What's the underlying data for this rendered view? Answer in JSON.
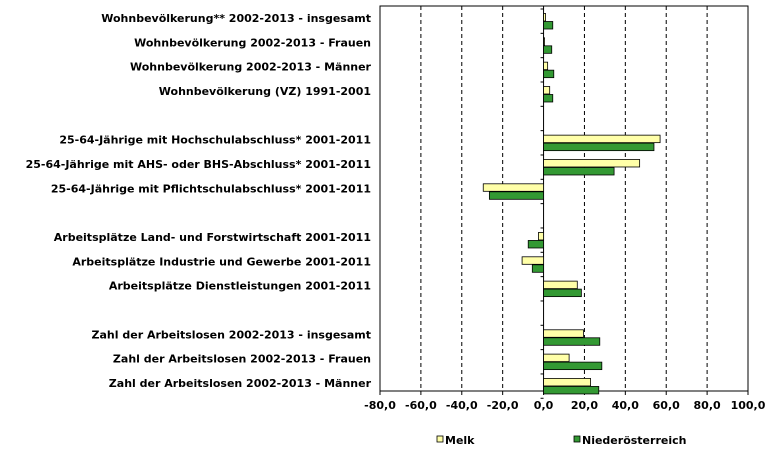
{
  "chart_data": {
    "type": "bar",
    "orientation": "horizontal",
    "categories": [
      "Wohnbevölkerung** 2002-2013 - insgesamt",
      "Wohnbevölkerung 2002-2013 - Frauen",
      "Wohnbevölkerung 2002-2013 - Männer",
      "Wohnbevölkerung (VZ) 1991-2001",
      "",
      "25-64-Jährige mit Hochschulabschluss* 2001-2011",
      "25-64-Jährige mit AHS- oder BHS-Abschluss* 2001-2011",
      "25-64-Jährige mit Pflichtschulabschluss* 2001-2011",
      "",
      "Arbeitsplätze Land- und Forstwirtschaft 2001-2011",
      "Arbeitsplätze Industrie und Gewerbe 2001-2011",
      "Arbeitsplätze Dienstleistungen 2001-2011",
      "",
      "Zahl der Arbeitslosen 2002-2013 - insgesamt",
      "Zahl der Arbeitslosen 2002-2013 - Frauen",
      "Zahl der Arbeitslosen 2002-2013 - Männer"
    ],
    "series": [
      {
        "name": "Melk",
        "color": "#ffffa8",
        "values": [
          1,
          0.5,
          2,
          3,
          null,
          57,
          47,
          -29.5,
          null,
          -2.5,
          -10.5,
          16.5,
          null,
          19.5,
          12.5,
          23
        ]
      },
      {
        "name": "Niederösterreich",
        "color": "#339933",
        "values": [
          4.5,
          4,
          5,
          4.5,
          null,
          54,
          34.5,
          -26.5,
          null,
          -7.5,
          -5.5,
          18.5,
          null,
          27.5,
          28.5,
          27
        ]
      }
    ],
    "xlim": [
      -80,
      100
    ],
    "xticks": [
      "-80,0",
      "-60,0",
      "-40,0",
      "-20,0",
      "0,0",
      "20,0",
      "40,0",
      "60,0",
      "80,0",
      "100,0"
    ],
    "grid": "vertical dashed",
    "legend_position": "bottom"
  }
}
